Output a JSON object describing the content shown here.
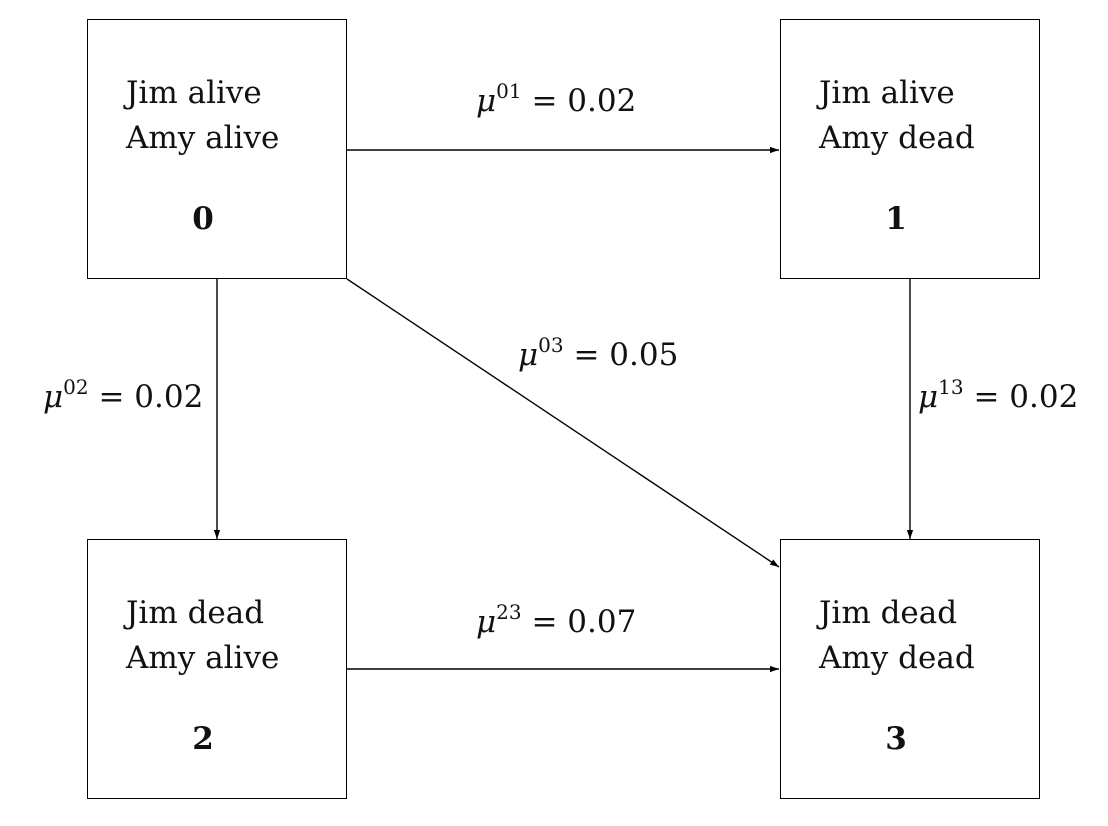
{
  "states": [
    {
      "id": "0",
      "line1": "Jim alive",
      "line2": "Amy alive",
      "number": "0"
    },
    {
      "id": "1",
      "line1": "Jim alive",
      "line2": "Amy dead",
      "number": "1"
    },
    {
      "id": "2",
      "line1": "Jim dead",
      "line2": "Amy alive",
      "number": "2"
    },
    {
      "id": "3",
      "line1": "Jim dead",
      "line2": "Amy dead",
      "number": "3"
    }
  ],
  "transitions": [
    {
      "from": "0",
      "to": "1",
      "symbol": "μ",
      "superscript": "01",
      "value": "= 0.02"
    },
    {
      "from": "0",
      "to": "2",
      "symbol": "μ",
      "superscript": "02",
      "value": "= 0.02"
    },
    {
      "from": "0",
      "to": "3",
      "symbol": "μ",
      "superscript": "03",
      "value": "= 0.05"
    },
    {
      "from": "1",
      "to": "3",
      "symbol": "μ",
      "superscript": "13",
      "value": "= 0.02"
    },
    {
      "from": "2",
      "to": "3",
      "symbol": "μ",
      "superscript": "23",
      "value": "= 0.07"
    }
  ]
}
